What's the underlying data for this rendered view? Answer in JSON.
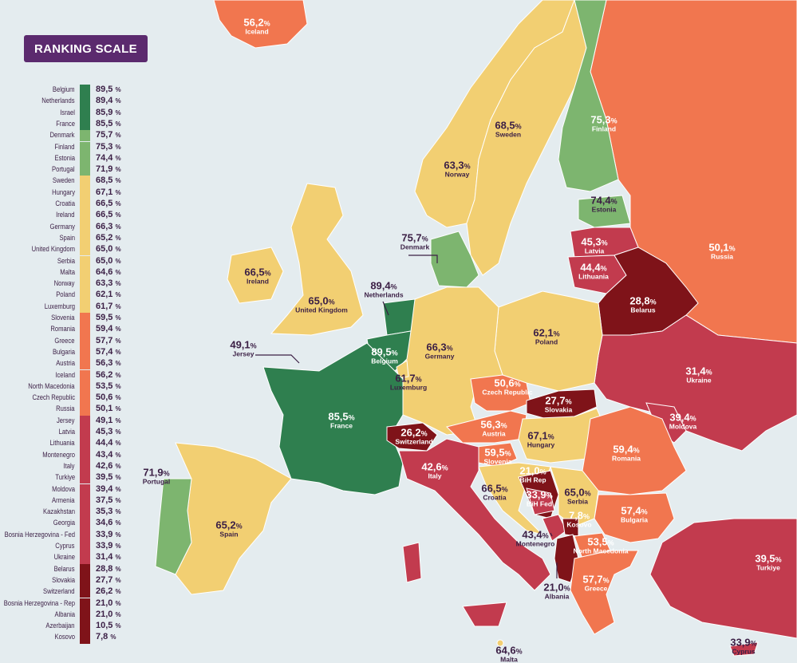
{
  "colors": {
    "sea": "#e4ecef",
    "title_bg": "#5b2a6e",
    "dark_green": "#2f7f4f",
    "light_green": "#7db56f",
    "yellow": "#f2cf72",
    "orange": "#f1764f",
    "red": "#c23b4e",
    "dark_red": "#7f1319",
    "text_dark": "#3b1f45"
  },
  "legend": {
    "title": "RANKING SCALE",
    "rows": [
      {
        "country": "Belgium",
        "value": "89,5",
        "tier": "dark_green"
      },
      {
        "country": "Netherlands",
        "value": "89,4",
        "tier": "dark_green"
      },
      {
        "country": "Israel",
        "value": "85,9",
        "tier": "dark_green"
      },
      {
        "country": "France",
        "value": "85,5",
        "tier": "dark_green"
      },
      {
        "country": "Denmark",
        "value": "75,7",
        "tier": "light_green"
      },
      {
        "country": "Finland",
        "value": "75,3",
        "tier": "light_green"
      },
      {
        "country": "Estonia",
        "value": "74,4",
        "tier": "light_green"
      },
      {
        "country": "Portugal",
        "value": "71,9",
        "tier": "light_green"
      },
      {
        "country": "Sweden",
        "value": "68,5",
        "tier": "yellow"
      },
      {
        "country": "Hungary",
        "value": "67,1",
        "tier": "yellow"
      },
      {
        "country": "Croatia",
        "value": "66,5",
        "tier": "yellow"
      },
      {
        "country": "Ireland",
        "value": "66,5",
        "tier": "yellow"
      },
      {
        "country": "Germany",
        "value": "66,3",
        "tier": "yellow"
      },
      {
        "country": "Spain",
        "value": "65,2",
        "tier": "yellow"
      },
      {
        "country": "United Kingdom",
        "value": "65,0",
        "tier": "yellow"
      },
      {
        "country": "Serbia",
        "value": "65,0",
        "tier": "yellow"
      },
      {
        "country": "Malta",
        "value": "64,6",
        "tier": "yellow"
      },
      {
        "country": "Norway",
        "value": "63,3",
        "tier": "yellow"
      },
      {
        "country": "Poland",
        "value": "62,1",
        "tier": "yellow"
      },
      {
        "country": "Luxemburg",
        "value": "61,7",
        "tier": "yellow"
      },
      {
        "country": "Slovenia",
        "value": "59,5",
        "tier": "orange"
      },
      {
        "country": "Romania",
        "value": "59,4",
        "tier": "orange"
      },
      {
        "country": "Greece",
        "value": "57,7",
        "tier": "orange"
      },
      {
        "country": "Bulgaria",
        "value": "57,4",
        "tier": "orange"
      },
      {
        "country": "Austria",
        "value": "56,3",
        "tier": "orange"
      },
      {
        "country": "Iceland",
        "value": "56,2",
        "tier": "orange"
      },
      {
        "country": "North Macedonia",
        "value": "53,5",
        "tier": "orange"
      },
      {
        "country": "Czech Republic",
        "value": "50,6",
        "tier": "orange"
      },
      {
        "country": "Russia",
        "value": "50,1",
        "tier": "orange"
      },
      {
        "country": "Jersey",
        "value": "49,1",
        "tier": "red"
      },
      {
        "country": "Latvia",
        "value": "45,3",
        "tier": "red"
      },
      {
        "country": "Lithuania",
        "value": "44,4",
        "tier": "red"
      },
      {
        "country": "Montenegro",
        "value": "43,4",
        "tier": "red"
      },
      {
        "country": "Italy",
        "value": "42,6",
        "tier": "red"
      },
      {
        "country": "Turkiye",
        "value": "39,5",
        "tier": "red"
      },
      {
        "country": "Moldova",
        "value": "39,4",
        "tier": "red"
      },
      {
        "country": "Armenia",
        "value": "37,5",
        "tier": "red"
      },
      {
        "country": "Kazakhstan",
        "value": "35,3",
        "tier": "red"
      },
      {
        "country": "Georgia",
        "value": "34,6",
        "tier": "red"
      },
      {
        "country": "Bosnia Herzegovina - Fed",
        "value": "33,9",
        "tier": "red"
      },
      {
        "country": "Cyprus",
        "value": "33,9",
        "tier": "red"
      },
      {
        "country": "Ukraine",
        "value": "31,4",
        "tier": "red"
      },
      {
        "country": "Belarus",
        "value": "28,8",
        "tier": "dark_red"
      },
      {
        "country": "Slovakia",
        "value": "27,7",
        "tier": "dark_red"
      },
      {
        "country": "Switzerland",
        "value": "26,2",
        "tier": "dark_red"
      },
      {
        "country": "Bosnia Herzegovina - Rep",
        "value": "21,0",
        "tier": "dark_red"
      },
      {
        "country": "Albania",
        "value": "21,0",
        "tier": "dark_red"
      },
      {
        "country": "Azerbaijan",
        "value": "10,5",
        "tier": "dark_red"
      },
      {
        "country": "Kosovo",
        "value": "7,8",
        "tier": "dark_red"
      }
    ]
  },
  "map_labels": [
    {
      "value": "56,2",
      "name": "Iceland",
      "tier": "orange",
      "style": "light"
    },
    {
      "value": "75,3",
      "name": "Finland",
      "tier": "light_green",
      "style": "light"
    },
    {
      "value": "68,5",
      "name": "Sweden",
      "tier": "yellow",
      "style": "dark"
    },
    {
      "value": "63,3",
      "name": "Norway",
      "tier": "yellow",
      "style": "dark"
    },
    {
      "value": "74,4",
      "name": "Estonia",
      "tier": "light_green",
      "style": "dark"
    },
    {
      "value": "75,7",
      "name": "Denmark",
      "tier": "light_green",
      "style": "dark"
    },
    {
      "value": "45,3",
      "name": "Latvia",
      "tier": "red",
      "style": "light"
    },
    {
      "value": "44,4",
      "name": "Lithuania",
      "tier": "red",
      "style": "light"
    },
    {
      "value": "50,1",
      "name": "Russia",
      "tier": "orange",
      "style": "light"
    },
    {
      "value": "66,5",
      "name": "Ireland",
      "tier": "yellow",
      "style": "dark"
    },
    {
      "value": "65,0",
      "name": "United Kingdom",
      "tier": "yellow",
      "style": "dark"
    },
    {
      "value": "89,4",
      "name": "Netherlands",
      "tier": "dark_green",
      "style": "dark"
    },
    {
      "value": "28,8",
      "name": "Belarus",
      "tier": "dark_red",
      "style": "light"
    },
    {
      "value": "49,1",
      "name": "Jersey",
      "tier": "red",
      "style": "dark"
    },
    {
      "value": "89,5",
      "name": "Belgium",
      "tier": "dark_green",
      "style": "light"
    },
    {
      "value": "66,3",
      "name": "Germany",
      "tier": "yellow",
      "style": "dark"
    },
    {
      "value": "62,1",
      "name": "Poland",
      "tier": "yellow",
      "style": "dark"
    },
    {
      "value": "61,7",
      "name": "Luxemburg",
      "tier": "yellow",
      "style": "dark"
    },
    {
      "value": "31,4",
      "name": "Ukraine",
      "tier": "red",
      "style": "light"
    },
    {
      "value": "50,6",
      "name": "Czech Republic",
      "tier": "orange",
      "style": "light"
    },
    {
      "value": "27,7",
      "name": "Slovakia",
      "tier": "dark_red",
      "style": "light"
    },
    {
      "value": "85,5",
      "name": "France",
      "tier": "dark_green",
      "style": "light"
    },
    {
      "value": "26,2",
      "name": "Switzerland",
      "tier": "dark_red",
      "style": "light"
    },
    {
      "value": "56,3",
      "name": "Austria",
      "tier": "orange",
      "style": "light"
    },
    {
      "value": "39,4",
      "name": "Moldova",
      "tier": "red",
      "style": "light"
    },
    {
      "value": "67,1",
      "name": "Hungary",
      "tier": "yellow",
      "style": "dark"
    },
    {
      "value": "59,5",
      "name": "Slovenia",
      "tier": "orange",
      "style": "light"
    },
    {
      "value": "42,6",
      "name": "Italy",
      "tier": "red",
      "style": "light"
    },
    {
      "value": "59,4",
      "name": "Romania",
      "tier": "orange",
      "style": "light"
    },
    {
      "value": "71,9",
      "name": "Portugal",
      "tier": "light_green",
      "style": "dark"
    },
    {
      "value": "21,0",
      "name": "BiH Rep",
      "tier": "dark_red",
      "style": "light"
    },
    {
      "value": "66,5",
      "name": "Croatia",
      "tier": "yellow",
      "style": "dark"
    },
    {
      "value": "65,0",
      "name": "Serbia",
      "tier": "yellow",
      "style": "dark"
    },
    {
      "value": "33,9",
      "name": "BiH Fed",
      "tier": "red",
      "style": "light"
    },
    {
      "value": "7,8",
      "name": "Kosovo",
      "tier": "dark_red",
      "style": "light"
    },
    {
      "value": "57,4",
      "name": "Bulgaria",
      "tier": "orange",
      "style": "light"
    },
    {
      "value": "65,2",
      "name": "Spain",
      "tier": "yellow",
      "style": "dark"
    },
    {
      "value": "43,4",
      "name": "Montenegro",
      "tier": "red",
      "style": "dark"
    },
    {
      "value": "53,5",
      "name": "North Macedonia",
      "tier": "orange",
      "style": "light"
    },
    {
      "value": "39,5",
      "name": "Turkiye",
      "tier": "red",
      "style": "light"
    },
    {
      "value": "21,0",
      "name": "Albania",
      "tier": "dark_red",
      "style": "dark"
    },
    {
      "value": "57,7",
      "name": "Greece",
      "tier": "orange",
      "style": "light"
    },
    {
      "value": "64,6",
      "name": "Malta",
      "tier": "yellow",
      "style": "dark"
    },
    {
      "value": "33,9",
      "name": "Cyprus",
      "tier": "red",
      "style": "dark"
    }
  ]
}
